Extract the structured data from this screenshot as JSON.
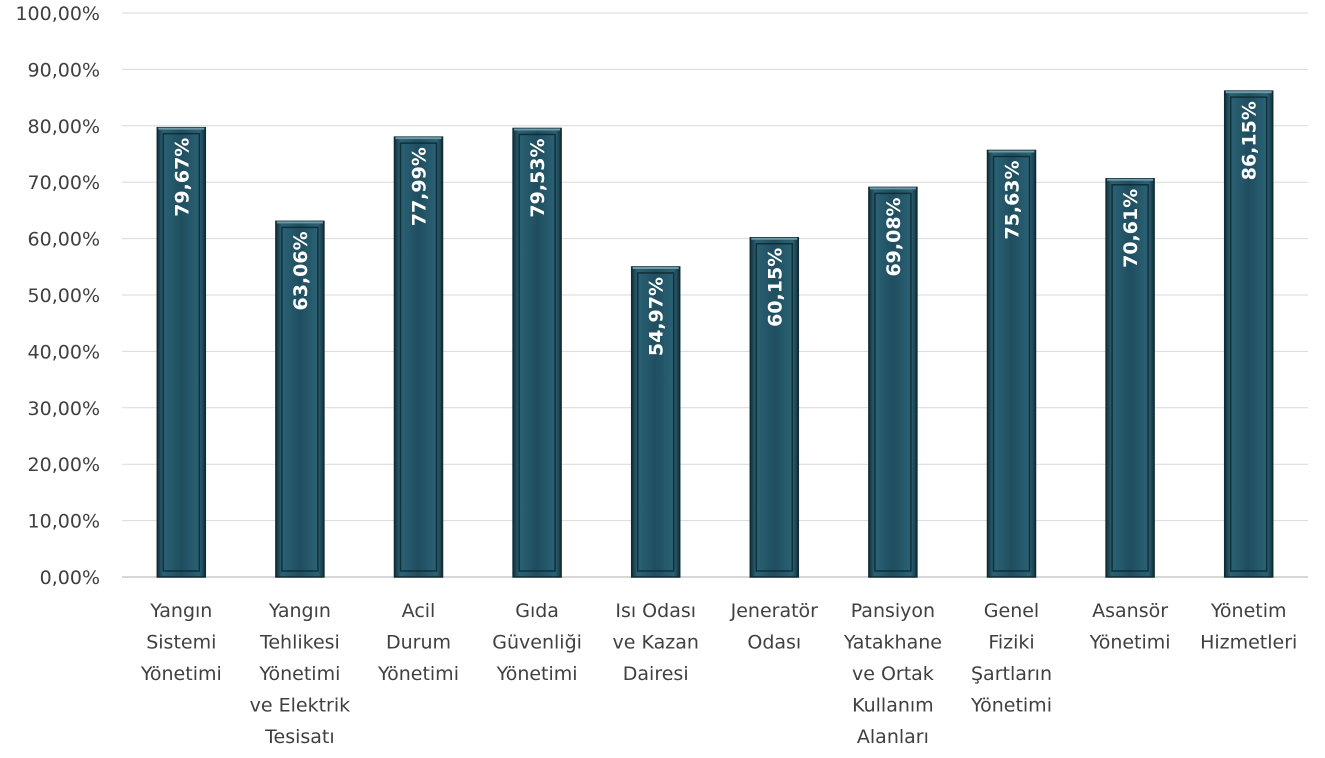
{
  "chart_data": {
    "type": "bar",
    "title": "",
    "xlabel": "",
    "ylabel": "",
    "ylim": [
      0,
      100
    ],
    "ytick_step": 10,
    "ytick_labels": [
      "0,00%",
      "10,00%",
      "20,00%",
      "30,00%",
      "40,00%",
      "50,00%",
      "60,00%",
      "70,00%",
      "80,00%",
      "90,00%",
      "100,00%"
    ],
    "grid": true,
    "legend": "none",
    "bar_color": "#1f4e5f",
    "categories": [
      [
        "Yangın",
        "Sistemi",
        "Yönetimi"
      ],
      [
        "Yangın",
        "Tehlikesi",
        "Yönetimi",
        "ve Elektrik",
        "Tesisatı"
      ],
      [
        "Acil",
        "Durum",
        "Yönetimi"
      ],
      [
        "Gıda",
        "Güvenliği",
        "Yönetimi"
      ],
      [
        "Isı Odası",
        "ve Kazan",
        "Dairesi"
      ],
      [
        "Jeneratör",
        "Odası"
      ],
      [
        "Pansiyon",
        "Yatakhane",
        "ve Ortak",
        "Kullanım",
        "Alanları"
      ],
      [
        "Genel",
        "Fiziki",
        "Şartların",
        "Yönetimi"
      ],
      [
        "Asansör",
        "Yönetimi"
      ],
      [
        "Yönetim",
        "Hizmetleri"
      ]
    ],
    "values": [
      79.67,
      63.06,
      77.99,
      79.53,
      54.97,
      60.15,
      69.08,
      75.63,
      70.61,
      86.15
    ],
    "data_labels": [
      "79,67%",
      "63,06%",
      "77,99%",
      "79,53%",
      "54,97%",
      "60,15%",
      "69,08%",
      "75,63%",
      "70,61%",
      "86,15%"
    ]
  }
}
